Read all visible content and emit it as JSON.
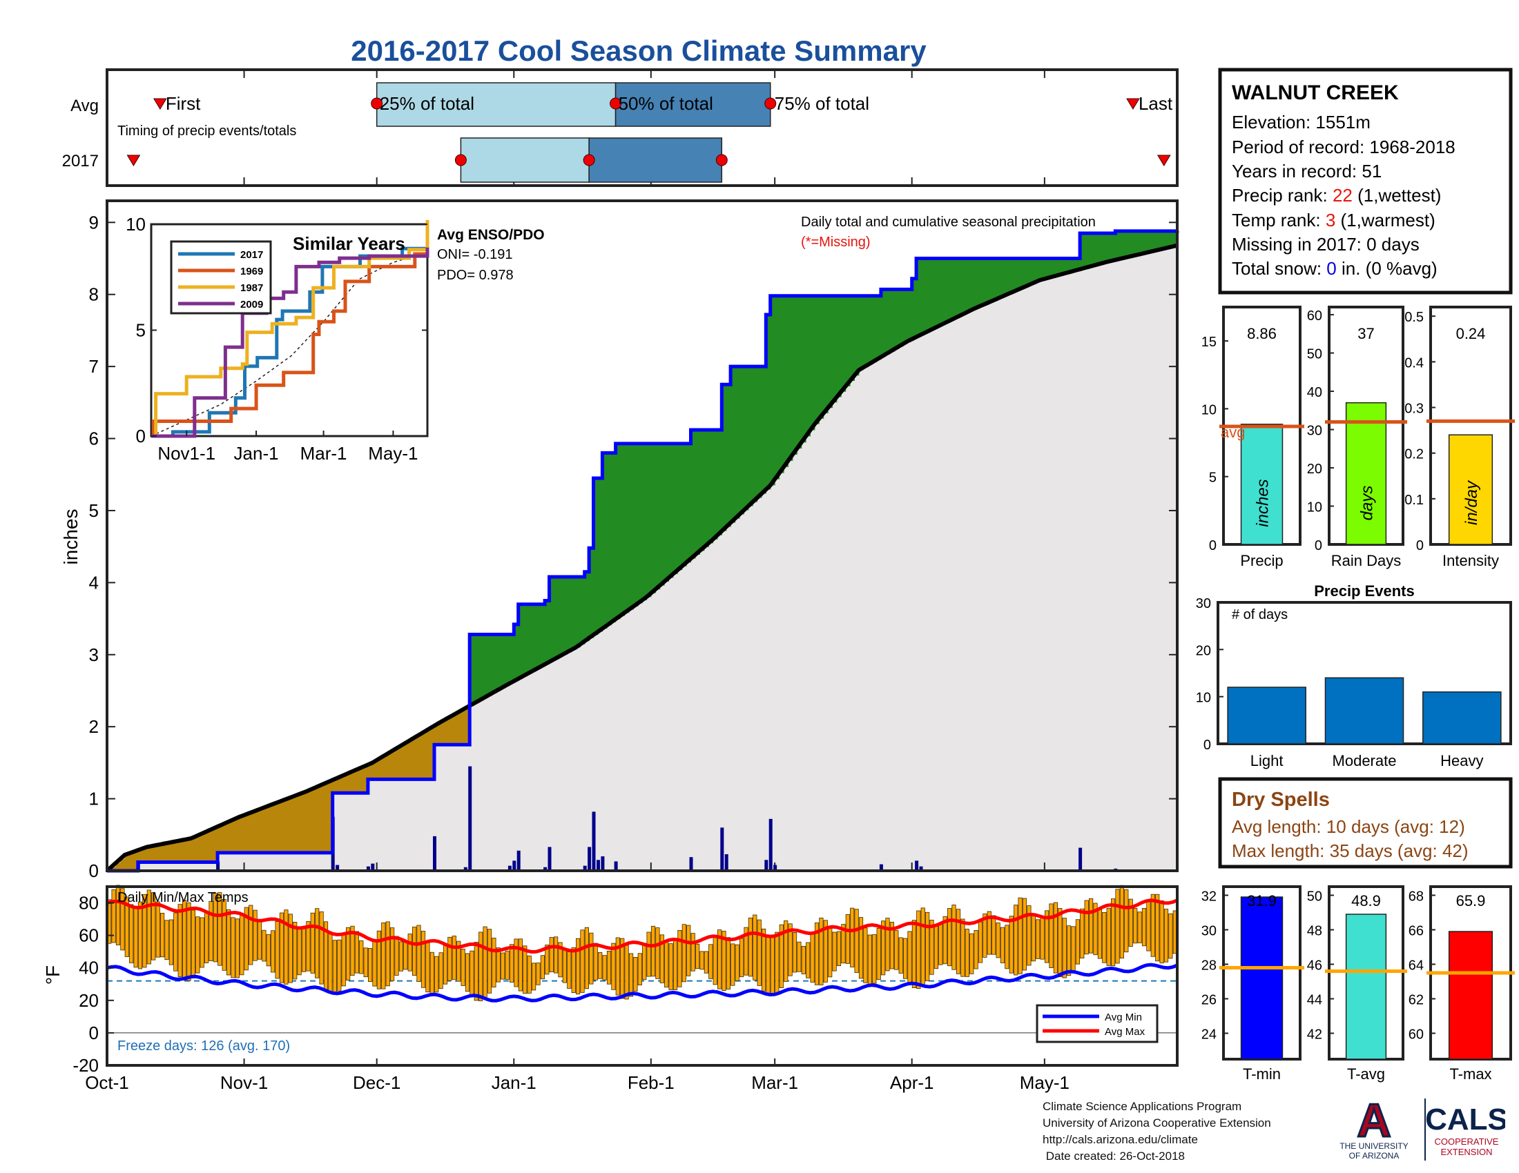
{
  "title": "2016-2017 Cool Season Climate Summary",
  "timing": {
    "row_labels": [
      "Avg",
      "2017"
    ],
    "caption": "Timing of precip events/totals",
    "labels": {
      "first": "First",
      "q25": "25% of total",
      "q50": "50% of total",
      "q75": "75% of total",
      "last": "Last"
    },
    "avg": {
      "first": "Oct-13",
      "q25": "Dec-01",
      "q50": "Jan-24",
      "q75": "Feb-28",
      "last": "May-21"
    },
    "y2017": {
      "first": "Oct-07",
      "q25": "Dec-20",
      "q50": "Jan-18",
      "q75": "Feb-17",
      "last": "May-28"
    },
    "colors": {
      "light": "#add8e6",
      "dark": "#4682b4"
    }
  },
  "station": {
    "name": "WALNUT CREEK",
    "elevation": "Elevation: 1551m",
    "period": "Period of record: 1968-2018",
    "years": "Years in record: 51",
    "precip_rank_prefix": "Precip rank: ",
    "precip_rank_value": "22",
    "precip_rank_suffix": " (1,wettest)",
    "temp_rank_prefix": "Temp rank: ",
    "temp_rank_value": "3",
    "temp_rank_suffix": " (1,warmest)",
    "missing": "Missing in 2017: 0 days",
    "snow_prefix": "Total snow: ",
    "snow_value": "0",
    "snow_suffix": " in. (0 %avg)"
  },
  "chart_data": [
    {
      "type": "area",
      "id": "cumulative_precip",
      "title": "Daily total and cumulative seasonal precipitation",
      "missing_note": "(*=Missing)",
      "ylabel": "inches",
      "ylim": [
        0,
        9.3
      ],
      "yticks": [
        0,
        1,
        2,
        3,
        4,
        5,
        6,
        7,
        8,
        9
      ],
      "x_tick_labels": [
        "Oct-1",
        "Nov-1",
        "Dec-1",
        "Jan-1",
        "Feb-1",
        "Mar-1",
        "Apr-1",
        "May-1"
      ],
      "season_start": "2016-10-01",
      "season_end": "2017-05-31",
      "avg_cumulative": [
        [
          "2016-10-01",
          0.0
        ],
        [
          "2016-10-05",
          0.22
        ],
        [
          "2016-10-10",
          0.33
        ],
        [
          "2016-10-20",
          0.45
        ],
        [
          "2016-10-31",
          0.75
        ],
        [
          "2016-11-15",
          1.1
        ],
        [
          "2016-11-30",
          1.5
        ],
        [
          "2016-12-15",
          2.05
        ],
        [
          "2016-12-31",
          2.6
        ],
        [
          "2017-01-15",
          3.1
        ],
        [
          "2017-01-31",
          3.8
        ],
        [
          "2017-02-15",
          4.6
        ],
        [
          "2017-02-28",
          5.35
        ],
        [
          "2017-03-10",
          6.2
        ],
        [
          "2017-03-20",
          6.95
        ],
        [
          "2017-03-31",
          7.35
        ],
        [
          "2017-04-15",
          7.8
        ],
        [
          "2017-04-30",
          8.2
        ],
        [
          "2017-05-15",
          8.45
        ],
        [
          "2017-05-31",
          8.68
        ]
      ],
      "cumulative_2017": [
        [
          "2016-10-01",
          0.0
        ],
        [
          "2016-10-08",
          0.12
        ],
        [
          "2016-10-25",
          0.12
        ],
        [
          "2016-10-26",
          0.25
        ],
        [
          "2016-11-20",
          0.25
        ],
        [
          "2016-11-21",
          1.08
        ],
        [
          "2016-11-28",
          1.08
        ],
        [
          "2016-11-29",
          1.27
        ],
        [
          "2016-12-13",
          1.27
        ],
        [
          "2016-12-14",
          1.75
        ],
        [
          "2016-12-21",
          1.75
        ],
        [
          "2016-12-22",
          3.28
        ],
        [
          "2016-12-31",
          3.28
        ],
        [
          "2017-01-01",
          3.42
        ],
        [
          "2017-01-02",
          3.7
        ],
        [
          "2017-01-08",
          3.75
        ],
        [
          "2017-01-09",
          4.08
        ],
        [
          "2017-01-17",
          4.15
        ],
        [
          "2017-01-18",
          4.48
        ],
        [
          "2017-01-19",
          5.45
        ],
        [
          "2017-01-21",
          5.8
        ],
        [
          "2017-01-24",
          5.93
        ],
        [
          "2017-02-09",
          5.93
        ],
        [
          "2017-02-10",
          6.12
        ],
        [
          "2017-02-16",
          6.12
        ],
        [
          "2017-02-17",
          6.75
        ],
        [
          "2017-02-19",
          7.0
        ],
        [
          "2017-02-26",
          7.0
        ],
        [
          "2017-02-27",
          7.72
        ],
        [
          "2017-02-28",
          7.98
        ],
        [
          "2017-03-24",
          7.98
        ],
        [
          "2017-03-25",
          8.07
        ],
        [
          "2017-04-01",
          8.22
        ],
        [
          "2017-04-02",
          8.5
        ],
        [
          "2017-05-08",
          8.5
        ],
        [
          "2017-05-09",
          8.85
        ],
        [
          "2017-05-16",
          8.85
        ],
        [
          "2017-05-17",
          8.88
        ],
        [
          "2017-05-31",
          8.88
        ]
      ],
      "daily_2017": [
        [
          "2016-10-08",
          0.12
        ],
        [
          "2016-10-26",
          0.13
        ],
        [
          "2016-11-21",
          0.75
        ],
        [
          "2016-11-22",
          0.08
        ],
        [
          "2016-11-29",
          0.06
        ],
        [
          "2016-11-30",
          0.1
        ],
        [
          "2016-12-14",
          0.48
        ],
        [
          "2016-12-21",
          0.05
        ],
        [
          "2016-12-22",
          1.45
        ],
        [
          "2016-12-31",
          0.07
        ],
        [
          "2017-01-01",
          0.14
        ],
        [
          "2017-01-02",
          0.28
        ],
        [
          "2017-01-08",
          0.05
        ],
        [
          "2017-01-09",
          0.33
        ],
        [
          "2017-01-17",
          0.07
        ],
        [
          "2017-01-18",
          0.33
        ],
        [
          "2017-01-19",
          0.82
        ],
        [
          "2017-01-20",
          0.15
        ],
        [
          "2017-01-21",
          0.2
        ],
        [
          "2017-01-24",
          0.13
        ],
        [
          "2017-02-10",
          0.19
        ],
        [
          "2017-02-17",
          0.6
        ],
        [
          "2017-02-18",
          0.23
        ],
        [
          "2017-02-27",
          0.15
        ],
        [
          "2017-02-28",
          0.72
        ],
        [
          "2017-03-01",
          0.08
        ],
        [
          "2017-03-25",
          0.09
        ],
        [
          "2017-04-02",
          0.14
        ],
        [
          "2017-04-03",
          0.06
        ],
        [
          "2017-05-09",
          0.32
        ],
        [
          "2017-05-17",
          0.03
        ]
      ],
      "colors": {
        "below_avg": "#b8860b",
        "above_avg": "#228b22",
        "avg_fill": "#e8e6e6",
        "line_2017": "#0000ff",
        "line_avg": "#000000",
        "daily_bars": "#00008b",
        "missing_note": "#e8140c"
      }
    },
    {
      "type": "line",
      "id": "similar_years",
      "title": "Similar Years",
      "ylim": [
        0,
        10
      ],
      "yticks": [
        0,
        5,
        10
      ],
      "x_tick_labels": [
        "Nov1-1",
        "Jan-1",
        "Mar-1",
        "May-1"
      ],
      "series": [
        {
          "name": "2017",
          "color": "#1f77b4",
          "values": [
            [
              "2016-10-01",
              0.0
            ],
            [
              "2016-10-20",
              0.2
            ],
            [
              "2016-11-21",
              1.1
            ],
            [
              "2016-12-14",
              1.8
            ],
            [
              "2016-12-22",
              3.3
            ],
            [
              "2017-01-02",
              3.7
            ],
            [
              "2017-01-19",
              5.5
            ],
            [
              "2017-01-24",
              5.9
            ],
            [
              "2017-02-17",
              6.8
            ],
            [
              "2017-02-28",
              8.0
            ],
            [
              "2017-04-02",
              8.5
            ],
            [
              "2017-05-09",
              8.85
            ],
            [
              "2017-05-31",
              8.88
            ]
          ]
        },
        {
          "name": "1969",
          "color": "#d95319",
          "values": [
            [
              "2016-10-01",
              0.0
            ],
            [
              "2016-10-03",
              0.7
            ],
            [
              "2016-12-03",
              0.7
            ],
            [
              "2016-12-10",
              1.3
            ],
            [
              "2016-12-24",
              1.3
            ],
            [
              "2017-01-01",
              2.4
            ],
            [
              "2017-01-25",
              3.0
            ],
            [
              "2017-02-20",
              4.8
            ],
            [
              "2017-02-25",
              5.4
            ],
            [
              "2017-03-10",
              5.9
            ],
            [
              "2017-03-20",
              7.3
            ],
            [
              "2017-04-10",
              8.0
            ],
            [
              "2017-05-05",
              8.0
            ],
            [
              "2017-05-20",
              8.6
            ],
            [
              "2017-05-31",
              8.7
            ]
          ]
        },
        {
          "name": "1987",
          "color": "#edb120",
          "values": [
            [
              "2016-10-01",
              0.0
            ],
            [
              "2016-10-05",
              2.0
            ],
            [
              "2016-10-25",
              2.0
            ],
            [
              "2016-11-01",
              2.8
            ],
            [
              "2016-11-25",
              2.8
            ],
            [
              "2016-12-01",
              3.2
            ],
            [
              "2016-12-20",
              3.4
            ],
            [
              "2016-12-24",
              4.9
            ],
            [
              "2017-01-15",
              5.3
            ],
            [
              "2017-02-05",
              5.6
            ],
            [
              "2017-02-20",
              7.0
            ],
            [
              "2017-03-10",
              8.0
            ],
            [
              "2017-04-10",
              8.4
            ],
            [
              "2017-05-15",
              8.8
            ],
            [
              "2017-05-31",
              10.2
            ]
          ]
        },
        {
          "name": "2009",
          "color": "#7e2f8e",
          "values": [
            [
              "2016-10-01",
              0.0
            ],
            [
              "2016-11-01",
              0.0
            ],
            [
              "2016-11-08",
              1.8
            ],
            [
              "2016-11-25",
              1.8
            ],
            [
              "2016-12-05",
              4.2
            ],
            [
              "2016-12-20",
              5.8
            ],
            [
              "2016-12-25",
              5.8
            ],
            [
              "2017-01-10",
              6.5
            ],
            [
              "2017-01-25",
              6.8
            ],
            [
              "2017-02-05",
              8.0
            ],
            [
              "2017-02-25",
              8.2
            ],
            [
              "2017-03-15",
              8.4
            ],
            [
              "2017-04-10",
              8.5
            ],
            [
              "2017-05-31",
              8.9
            ]
          ]
        }
      ],
      "avg_line": [
        [
          "2016-10-01",
          0.0
        ],
        [
          "2016-12-01",
          1.5
        ],
        [
          "2017-01-01",
          2.6
        ],
        [
          "2017-02-01",
          3.8
        ],
        [
          "2017-03-01",
          5.4
        ],
        [
          "2017-04-01",
          7.4
        ],
        [
          "2017-05-01",
          8.2
        ],
        [
          "2017-05-31",
          8.7
        ]
      ]
    },
    {
      "type": "bar",
      "id": "summary_precip",
      "categories": [
        "Precip"
      ],
      "values": [
        8.86
      ],
      "value_label": "8.86",
      "inner_label": "inches",
      "avg": 8.7,
      "avg_label": "avg",
      "ylim": [
        0,
        17.5
      ],
      "yticks": [
        0,
        5,
        10,
        15
      ],
      "color": "#40e0d0"
    },
    {
      "type": "bar",
      "id": "summary_raindays",
      "categories": [
        "Rain Days"
      ],
      "values": [
        37
      ],
      "value_label": "37",
      "inner_label": "days",
      "avg": 32,
      "ylim": [
        0,
        62
      ],
      "yticks": [
        0,
        10,
        20,
        30,
        40,
        50,
        60
      ],
      "color": "#7cfc00"
    },
    {
      "type": "bar",
      "id": "summary_intensity",
      "categories": [
        "Intensity"
      ],
      "values": [
        0.24
      ],
      "value_label": "0.24",
      "inner_label": "in/day",
      "avg": 0.27,
      "ylim": [
        0,
        0.52
      ],
      "yticks": [
        0,
        0.1,
        0.2,
        0.3,
        0.4,
        0.5
      ],
      "color": "#ffd700"
    },
    {
      "type": "bar",
      "id": "precip_events",
      "title": "Precip Events",
      "annotation": "# of days",
      "categories": [
        "Light",
        "Moderate",
        "Heavy"
      ],
      "values": [
        12,
        14,
        11
      ],
      "ylim": [
        0,
        30
      ],
      "yticks": [
        0,
        10,
        20,
        30
      ],
      "color": "#0070c0"
    },
    {
      "type": "bar",
      "id": "daily_temps",
      "title": "Daily Min/Max Temps",
      "ylabel": "°F",
      "ylim": [
        -20,
        90
      ],
      "yticks": [
        -20,
        0,
        20,
        40,
        60,
        80
      ],
      "x_tick_labels": [
        "Oct-1",
        "Nov-1",
        "Dec-1",
        "Jan-1",
        "Feb-1",
        "Mar-1",
        "Apr-1",
        "May-1"
      ],
      "freeze_days_text": "Freeze days: 126 (avg. 170)",
      "freezing_line": 32,
      "legend": [
        "Avg Min",
        "Avg Max"
      ],
      "avg_max": [
        [
          "2016-10-01",
          80
        ],
        [
          "2016-10-15",
          77
        ],
        [
          "2016-11-01",
          72
        ],
        [
          "2016-11-15",
          65
        ],
        [
          "2016-12-01",
          58
        ],
        [
          "2016-12-15",
          55
        ],
        [
          "2017-01-01",
          51
        ],
        [
          "2017-01-15",
          52
        ],
        [
          "2017-02-01",
          55
        ],
        [
          "2017-02-15",
          58
        ],
        [
          "2017-03-01",
          61
        ],
        [
          "2017-03-15",
          64
        ],
        [
          "2017-04-01",
          66
        ],
        [
          "2017-04-15",
          69
        ],
        [
          "2017-05-01",
          72
        ],
        [
          "2017-05-15",
          77
        ],
        [
          "2017-05-31",
          82
        ]
      ],
      "avg_min": [
        [
          "2016-10-01",
          40
        ],
        [
          "2016-10-15",
          35
        ],
        [
          "2016-11-01",
          30
        ],
        [
          "2016-11-15",
          27
        ],
        [
          "2016-12-01",
          24
        ],
        [
          "2016-12-15",
          22
        ],
        [
          "2017-01-01",
          21
        ],
        [
          "2017-01-15",
          22
        ],
        [
          "2017-02-01",
          23
        ],
        [
          "2017-02-15",
          24
        ],
        [
          "2017-03-01",
          25
        ],
        [
          "2017-03-15",
          27
        ],
        [
          "2017-04-01",
          29
        ],
        [
          "2017-04-15",
          32
        ],
        [
          "2017-05-01",
          35
        ],
        [
          "2017-05-15",
          38
        ],
        [
          "2017-05-31",
          42
        ]
      ],
      "colors": {
        "bars": "#ffa500",
        "avg_max": "#ff0000",
        "avg_min": "#0000ff",
        "freeze_text": "#1f6fb4"
      }
    },
    {
      "type": "bar",
      "id": "summary_tmin",
      "categories": [
        "T-min"
      ],
      "values": [
        31.9
      ],
      "value_label": "31.9",
      "avg": 27.8,
      "ylim": [
        22.5,
        32.5
      ],
      "yticks": [
        24,
        26,
        28,
        30,
        32
      ],
      "color": "#0000ff"
    },
    {
      "type": "bar",
      "id": "summary_tavg",
      "categories": [
        "T-avg"
      ],
      "values": [
        48.9
      ],
      "value_label": "48.9",
      "avg": 45.6,
      "ylim": [
        40.5,
        50.5
      ],
      "yticks": [
        42,
        44,
        46,
        48,
        50
      ],
      "color": "#40e0d0"
    },
    {
      "type": "bar",
      "id": "summary_tmax",
      "categories": [
        "T-max"
      ],
      "values": [
        65.9
      ],
      "value_label": "65.9",
      "avg": 63.5,
      "ylim": [
        58.5,
        68.5
      ],
      "yticks": [
        60,
        62,
        64,
        66,
        68
      ],
      "color": "#ff0000"
    }
  ],
  "dry_spells": {
    "title": "Dry Spells",
    "avg_length": "Avg length: 10 days (avg: 12)",
    "max_length": "Max length: 35 days (avg: 42)",
    "color": "#8b4513"
  },
  "enso": {
    "title": "Avg ENSO/PDO",
    "oni": "ONI= -0.191",
    "pdo": "PDO= 0.978"
  },
  "footer": {
    "line1": "Climate Science Applications Program",
    "line2": "University of Arizona Cooperative Extension",
    "line3": "http://cals.arizona.edu/climate",
    "line4": " Date created: 26-Oct-2018"
  },
  "logos": {
    "ua_letter": "A",
    "ua_line1": "THE UNIVERSITY",
    "ua_line2": "OF ARIZONA",
    "cals": "CALS",
    "cals_line1": "COOPERATIVE",
    "cals_line2": "EXTENSION",
    "ua_red": "#ab0520",
    "ua_blue": "#0c234b"
  }
}
